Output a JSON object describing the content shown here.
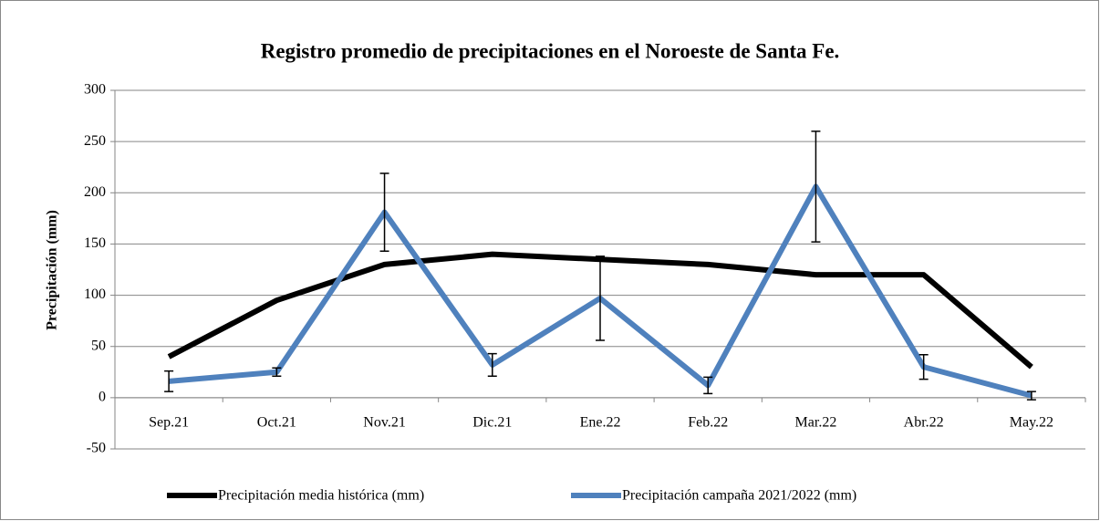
{
  "chart_data": {
    "type": "line",
    "title": "Registro promedio de precipitaciones en el Noroeste de Santa Fe.",
    "y_label": "Precipitación (mm)",
    "categories": [
      "Sep.21",
      "Oct.21",
      "Nov.21",
      "Dic.21",
      "Ene.22",
      "Feb.22",
      "Mar.22",
      "Abr.22",
      "May.22"
    ],
    "series": [
      {
        "name": "Precipitación media histórica (mm)",
        "color": "#000000",
        "values": [
          40,
          95,
          130,
          140,
          135,
          130,
          120,
          120,
          30
        ]
      },
      {
        "name": "Precipitación campaña 2021/2022 (mm)",
        "color": "#4f81bd",
        "values": [
          16,
          25,
          181,
          32,
          97,
          12,
          206,
          30,
          2
        ],
        "errors": [
          10,
          4,
          38,
          11,
          41,
          8,
          54,
          12,
          4
        ]
      }
    ],
    "ylim": [
      -50,
      300
    ],
    "yticks": [
      -50,
      0,
      50,
      100,
      150,
      200,
      250,
      300
    ],
    "grid": true,
    "legend": "bottom"
  }
}
